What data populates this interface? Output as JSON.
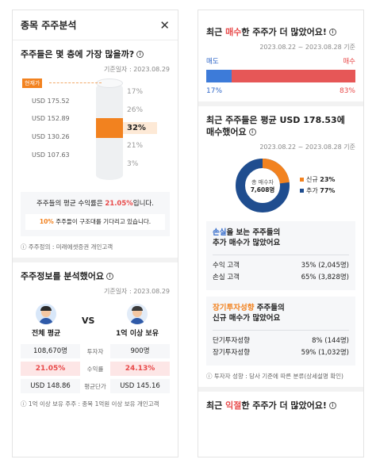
{
  "left": {
    "header": {
      "title": "종목 주주분석"
    },
    "floor": {
      "title": "주주들은 몇 층에 가장 많을까?",
      "date": "기준일자 : 2023.08.29",
      "current_tag": "현재가",
      "price_levels": [
        "USD 175.52",
        "USD 152.89",
        "USD 130.26",
        "USD 107.63"
      ],
      "percents": [
        "17%",
        "26%",
        "32%",
        "21%",
        "3%"
      ],
      "avg_text_pre": "주주들의 평균 수익률은 ",
      "avg_value": "21.05%",
      "avg_text_post": "입니다.",
      "expect_pct": "10%",
      "expect_text": " 주주들이 구조대를 기다리고 있습니다.",
      "note": "ⓘ 주주정의 : 미래에셋증권 개인고객"
    },
    "analysis": {
      "title": "주주정보를 분석했어요",
      "date": "기준일자 : 2023.08.29",
      "left_label": "전체 평균",
      "vs_label": "VS",
      "right_label": "1억 이상 보유",
      "rows": [
        {
          "left": "108,670명",
          "mid": "투자자",
          "right": "900명",
          "highlight": false
        },
        {
          "left": "21.05%",
          "mid": "수익률",
          "right": "24.13%",
          "highlight": true
        },
        {
          "left": "USD 148.86",
          "mid": "평균단가",
          "right": "USD 145.16",
          "highlight": false
        }
      ],
      "note": "ⓘ 1억 이상 보유 주주 : 종목 1억원 이상 보유 개인고객"
    }
  },
  "right": {
    "buy": {
      "title_pre": "최근 ",
      "title_hl": "매수",
      "title_post": "한 주주가 더 많았어요!",
      "date": "2023.08.22 ~ 2023.08.28 기준",
      "sell_label": "매도",
      "buy_label": "매수",
      "sell_pct": "17%",
      "buy_pct": "83%",
      "sell_value": 17,
      "buy_value": 83
    },
    "avg_buy": {
      "title_line1": "최근 주주들은 평균 USD 178.53에",
      "title_line2": "매수했어요",
      "date": "2023.08.22 ~ 2023.08.28 기준",
      "donut_title": "총 매수자",
      "donut_value": "7,608명",
      "legend": [
        {
          "label": "신규",
          "pct": "23%",
          "value": 23,
          "color": "#f2821f"
        },
        {
          "label": "추가",
          "pct": "77%",
          "value": 77,
          "color": "#1f4d8f"
        }
      ]
    },
    "loss_box": {
      "title_hl": "손실",
      "title_post": "을 보는 주주들의",
      "title_line2": "추가 매수가 많았어요",
      "rows": [
        {
          "label": "수익 고객",
          "value": "35% (2,045명)"
        },
        {
          "label": "손실 고객",
          "value": "65% (3,828명)"
        }
      ]
    },
    "long_box": {
      "title_hl": "장기투자성향",
      "title_post": " 주주들의",
      "title_line2": "신규 매수가 많았어요",
      "rows": [
        {
          "label": "단기투자성향",
          "value": "8% (144명)"
        },
        {
          "label": "장기투자성향",
          "value": "59% (1,032명)"
        }
      ]
    },
    "note": "ⓘ 투자자 성향 : 당사 기준에 따른 분류(상세설명 확인)",
    "sell": {
      "title_pre": "최근 ",
      "title_hl": "익절",
      "title_post": "한 주주가 더 많았어요!"
    }
  }
}
